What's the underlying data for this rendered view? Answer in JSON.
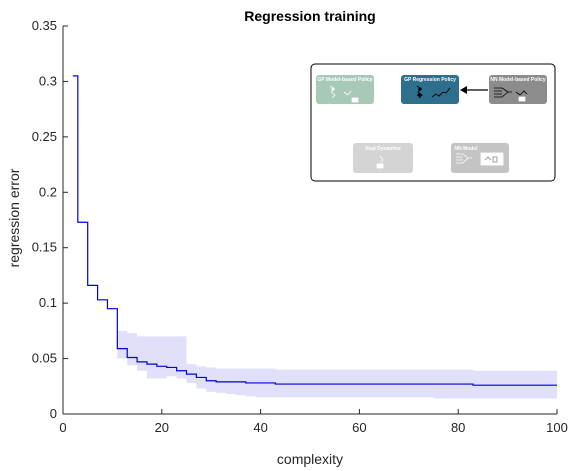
{
  "chart_data": {
    "type": "line",
    "title": "Regression training",
    "xlabel": "complexity",
    "ylabel": "regression error",
    "xlim": [
      0,
      100
    ],
    "ylim": [
      0,
      0.35
    ],
    "xticks": [
      0,
      20,
      40,
      60,
      80,
      100
    ],
    "yticks": [
      0,
      0.05,
      0.1,
      0.15,
      0.2,
      0.25,
      0.3,
      0.35
    ],
    "grid": false,
    "series": [
      {
        "kind": "stairs",
        "color": "#0000d8",
        "x": [
          2,
          3,
          5,
          7,
          9,
          11,
          13,
          15,
          17,
          19,
          21,
          23,
          25,
          27,
          29,
          31,
          33,
          35,
          37,
          39,
          43,
          47,
          51,
          55,
          59,
          63,
          67,
          71,
          75,
          79,
          83,
          87,
          91,
          95,
          99,
          100
        ],
        "y": [
          0.305,
          0.173,
          0.116,
          0.103,
          0.095,
          0.059,
          0.051,
          0.047,
          0.045,
          0.043,
          0.042,
          0.039,
          0.036,
          0.033,
          0.03,
          0.029,
          0.029,
          0.029,
          0.028,
          0.028,
          0.027,
          0.027,
          0.027,
          0.027,
          0.027,
          0.027,
          0.027,
          0.027,
          0.027,
          0.027,
          0.026,
          0.026,
          0.026,
          0.026,
          0.026,
          0.026
        ]
      }
    ],
    "band": {
      "color": "#e0e0fa",
      "upper": [
        0.305,
        0.173,
        0.116,
        0.103,
        0.095,
        0.075,
        0.073,
        0.07,
        0.07,
        0.07,
        0.07,
        0.07,
        0.045,
        0.043,
        0.042,
        0.041,
        0.041,
        0.041,
        0.041,
        0.041,
        0.04,
        0.04,
        0.04,
        0.04,
        0.04,
        0.04,
        0.04,
        0.04,
        0.04,
        0.04,
        0.039,
        0.039,
        0.039,
        0.039,
        0.039,
        0.039
      ],
      "lower": [
        0.305,
        0.173,
        0.116,
        0.103,
        0.095,
        0.05,
        0.044,
        0.039,
        0.032,
        0.032,
        0.034,
        0.032,
        0.028,
        0.023,
        0.02,
        0.019,
        0.018,
        0.017,
        0.016,
        0.015,
        0.015,
        0.015,
        0.015,
        0.015,
        0.015,
        0.015,
        0.015,
        0.015,
        0.014,
        0.014,
        0.014,
        0.014,
        0.014,
        0.014,
        0.014,
        0.014
      ]
    },
    "inset": {
      "boxes": [
        {
          "label": "GP Model-based Policy",
          "color": "#a8c8b8",
          "icons": "gp-model-icons"
        },
        {
          "label": "GP Regression Policy",
          "color": "#2e6f8e",
          "icons": "gp-regression-icons"
        },
        {
          "label": "NN Model-based Policy",
          "color": "#8c8c8c",
          "icons": "nn-model-icons"
        },
        {
          "label": "Real Dynamics",
          "color": "#d4d4d4",
          "icons": "real-dynamics-icons"
        },
        {
          "label": "NN Model",
          "color": "#c4c4c4",
          "icons": "nn-icons"
        }
      ],
      "arrow": "from NN Model-based Policy to GP Regression Policy"
    }
  }
}
